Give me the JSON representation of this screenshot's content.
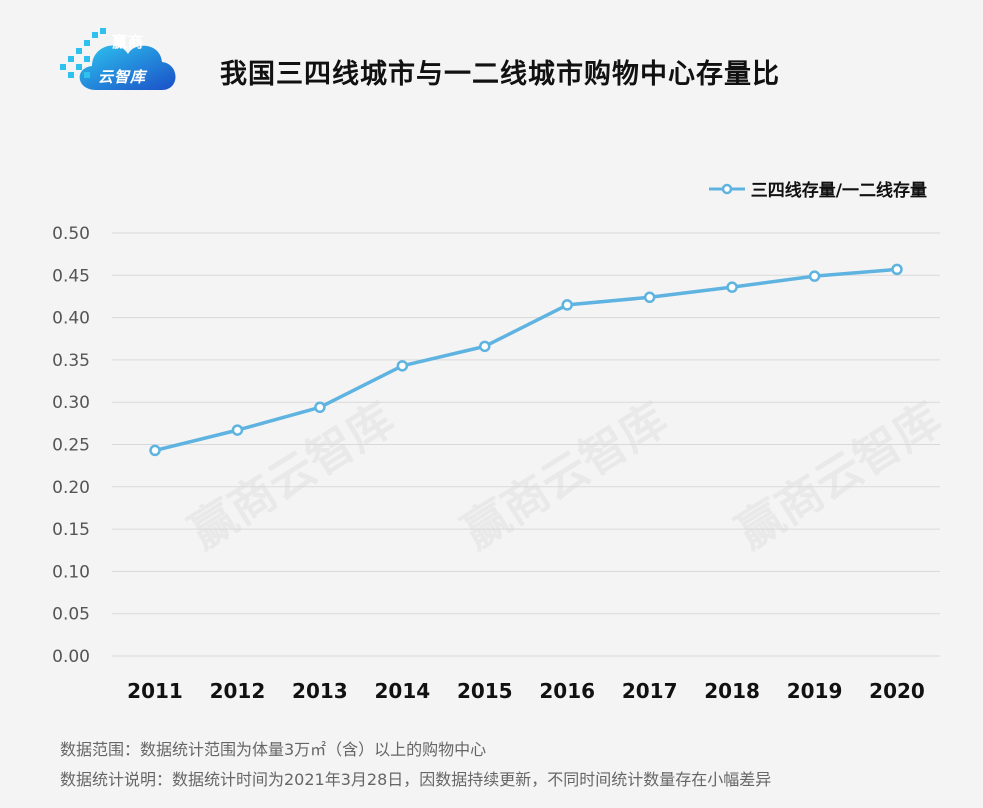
{
  "logo": {
    "line1": "赢商",
    "line2": "云智库"
  },
  "watermark": "赢商云智库",
  "notes": {
    "scope": "数据范围：数据统计范围为体量3万㎡（含）以上的购物中心",
    "explanation": "数据统计说明：数据统计时间为2021年3月28日，因数据持续更新，不同时间统计数量存在小幅差异"
  },
  "colors": {
    "line": "#5fb3e0",
    "grid": "#d9d9d9",
    "text": "#111111"
  },
  "chart_data": {
    "type": "line",
    "title": "我国三四线城市与一二线城市购物中心存量比",
    "categories": [
      "2011",
      "2012",
      "2013",
      "2014",
      "2015",
      "2016",
      "2017",
      "2018",
      "2019",
      "2020"
    ],
    "series": [
      {
        "name": "三四线存量/一二线存量",
        "values": [
          0.243,
          0.267,
          0.294,
          0.343,
          0.366,
          0.415,
          0.424,
          0.436,
          0.449,
          0.457
        ]
      }
    ],
    "ylim": [
      0,
      0.5
    ],
    "yticks": [
      "0.00",
      "0.05",
      "0.10",
      "0.15",
      "0.20",
      "0.25",
      "0.30",
      "0.35",
      "0.40",
      "0.45",
      "0.50"
    ],
    "grid": true,
    "legend": "top-right"
  }
}
